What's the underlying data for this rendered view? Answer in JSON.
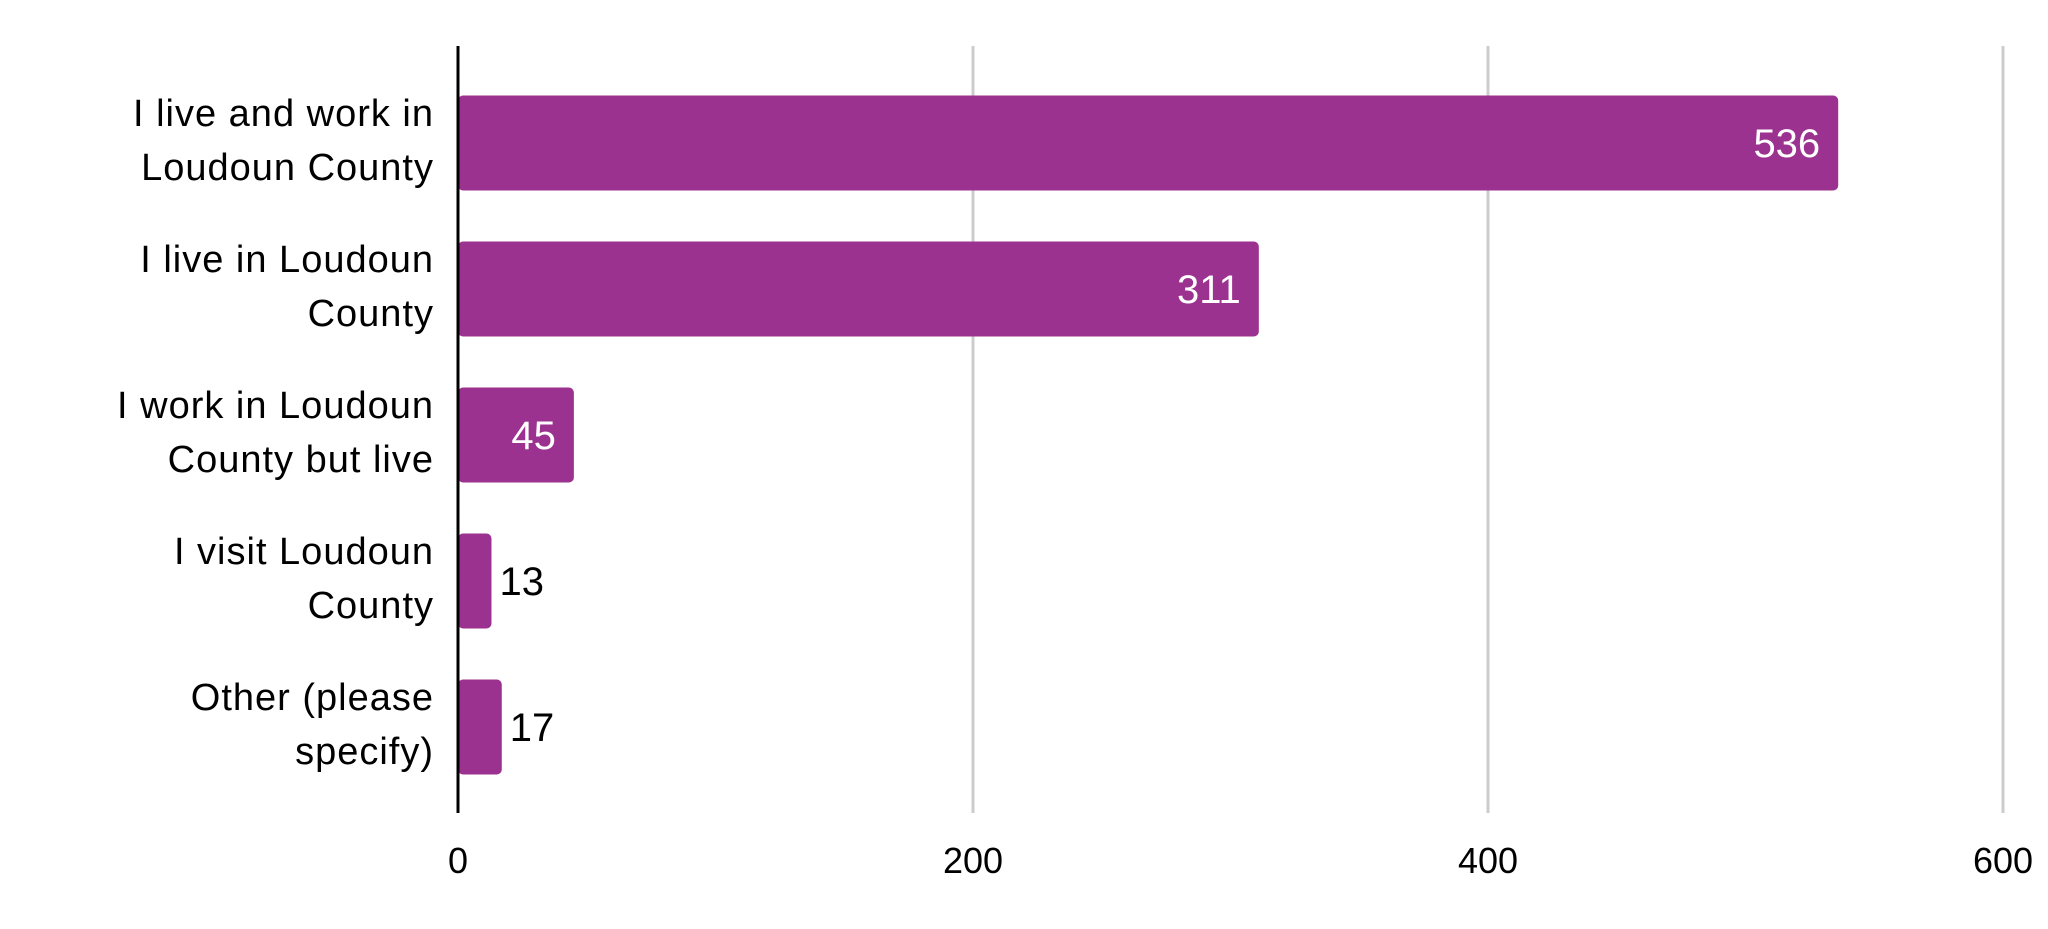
{
  "chart_data": {
    "type": "bar",
    "orientation": "horizontal",
    "categories": [
      [
        "I live and work in",
        "Loudoun County"
      ],
      [
        "I live in Loudoun",
        "County"
      ],
      [
        "I work in Loudoun",
        "County but live"
      ],
      [
        "I visit Loudoun",
        "County"
      ],
      [
        "Other (please",
        "specify)"
      ]
    ],
    "values": [
      536,
      311,
      45,
      13,
      17
    ],
    "xlim": [
      0,
      600
    ],
    "x_ticks": [
      0,
      200,
      400,
      600
    ],
    "grid": "vertical",
    "legend": "none",
    "bar_color": "#9b3290",
    "label_inside_color": "#ffffff",
    "label_outside_color": "#000000",
    "grid_color": "#cccccc",
    "axis_color": "#000000"
  }
}
